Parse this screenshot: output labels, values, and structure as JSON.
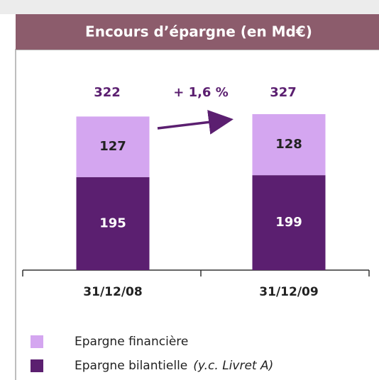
{
  "chart_data": {
    "type": "stacked_bar",
    "title": "Encours d’épargne (en Md€)",
    "categories": [
      "31/12/08",
      "31/12/09"
    ],
    "series": [
      {
        "name": "Epargne bilantielle",
        "color": "#5b1f70",
        "values": [
          195,
          199
        ]
      },
      {
        "name": "Epargne financière",
        "color": "#d4a6f0",
        "values": [
          127,
          128
        ]
      }
    ],
    "totals": [
      322,
      327
    ],
    "annotation": "+ 1,6 %",
    "legend_note": "(y.c. Livret A)"
  }
}
